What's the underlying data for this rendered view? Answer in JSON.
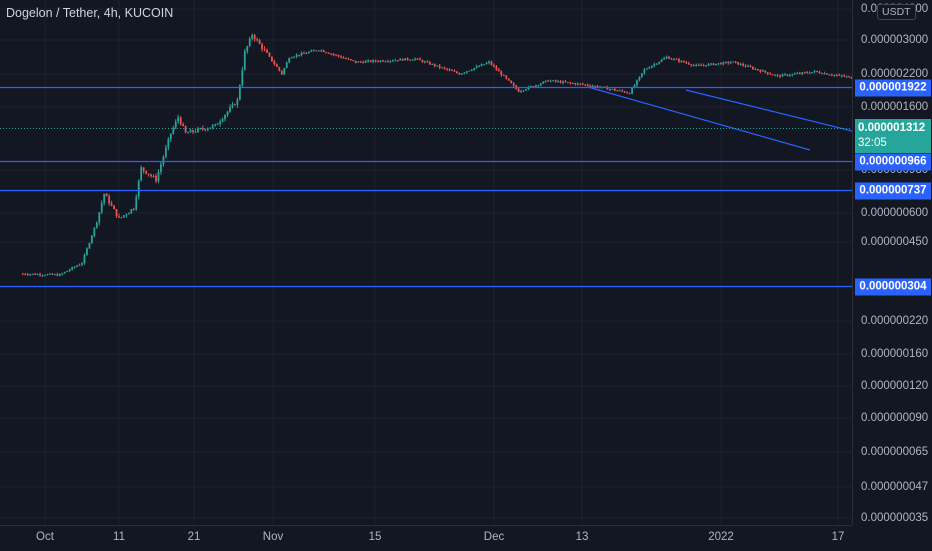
{
  "header": {
    "title": "Dogelon / Tether, 4h, KUCOIN"
  },
  "price_scale": {
    "currency_label": "USDT",
    "ticks": [
      "0.000004300",
      "0.000003000",
      "0.000002200",
      "0.000001600",
      "0.000000980",
      "0.000000600",
      "0.000000450",
      "0.000000220",
      "0.000000160",
      "0.000000120",
      "0.000000090",
      "0.000000065",
      "0.000000047",
      "0.000000035"
    ],
    "last_price": "0.000001312",
    "countdown": "32:05"
  },
  "horizontal_lines": [
    {
      "label": "0.000001922"
    },
    {
      "label": "0.000000966"
    },
    {
      "label": "0.000000737"
    },
    {
      "label": "0.000000304"
    }
  ],
  "time_scale": {
    "labels": [
      "Oct",
      "11",
      "21",
      "Nov",
      "15",
      "Dec",
      "13",
      "2022",
      "17"
    ]
  },
  "colors": {
    "background": "#131722",
    "up": "#26a69a",
    "down": "#ef5350",
    "lines": "#2962ff",
    "text": "#b2b5be"
  },
  "chart_data": {
    "type": "candlestick",
    "title": "Dogelon / Tether, 4h, KUCOIN",
    "scale": "log",
    "ylim": [
      3.5e-08,
      4.3e-06
    ],
    "x_labels": [
      "Oct",
      "11",
      "21",
      "Nov",
      "15",
      "Dec",
      "13",
      "2022",
      "17"
    ],
    "close_path": [
      {
        "x": "Sep 28",
        "y": 5e-08
      },
      {
        "x": "Oct 3",
        "y": 4.9e-08
      },
      {
        "x": "Oct 6",
        "y": 6e-08
      },
      {
        "x": "Oct 8",
        "y": 1.2e-07
      },
      {
        "x": "Oct 9",
        "y": 1.9e-07
      },
      {
        "x": "Oct 11",
        "y": 1.25e-07
      },
      {
        "x": "Oct 13",
        "y": 1.5e-07
      },
      {
        "x": "Oct 14",
        "y": 2.9e-07
      },
      {
        "x": "Oct 16",
        "y": 2.4e-07
      },
      {
        "x": "Oct 18",
        "y": 5.2e-07
      },
      {
        "x": "Oct 19",
        "y": 6.8e-07
      },
      {
        "x": "Oct 20",
        "y": 5.2e-07
      },
      {
        "x": "Oct 24",
        "y": 5.9e-07
      },
      {
        "x": "Oct 27",
        "y": 9e-07
      },
      {
        "x": "Oct 28",
        "y": 2e-06
      },
      {
        "x": "Oct 29",
        "y": 2.7e-06
      },
      {
        "x": "Nov 2",
        "y": 1.4e-06
      },
      {
        "x": "Nov 3",
        "y": 1.85e-06
      },
      {
        "x": "Nov 7",
        "y": 2.1e-06
      },
      {
        "x": "Nov 12",
        "y": 1.7e-06
      },
      {
        "x": "Nov 20",
        "y": 1.8e-06
      },
      {
        "x": "Nov 26",
        "y": 1.4e-06
      },
      {
        "x": "Nov 30",
        "y": 1.7e-06
      },
      {
        "x": "Dec 4",
        "y": 1.05e-06
      },
      {
        "x": "Dec 8",
        "y": 1.25e-06
      },
      {
        "x": "Dec 14",
        "y": 1.15e-06
      },
      {
        "x": "Dec 19",
        "y": 1.02e-06
      },
      {
        "x": "Dec 21",
        "y": 1.5e-06
      },
      {
        "x": "Dec 24",
        "y": 1.85e-06
      },
      {
        "x": "Dec 28",
        "y": 1.6e-06
      },
      {
        "x": "Jan 2",
        "y": 1.7e-06
      },
      {
        "x": "Jan 8",
        "y": 1.35e-06
      },
      {
        "x": "Jan 13",
        "y": 1.45e-06
      },
      {
        "x": "Jan 18",
        "y": 1.312e-06
      }
    ],
    "horizontal_levels": [
      1.922e-06,
      9.66e-07,
      7.37e-07,
      3.04e-07
    ],
    "last_price": 1.312e-06
  }
}
